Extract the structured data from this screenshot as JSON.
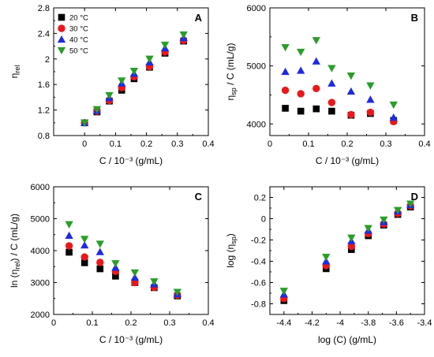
{
  "colors": {
    "20 °C": "#000000",
    "30 °C": "#e8191c",
    "40 °C": "#1f2be0",
    "50 °C": "#2a9d2a"
  },
  "markers": {
    "20 °C": "square",
    "30 °C": "circle",
    "40 °C": "triangle-up",
    "50 °C": "triangle-down"
  },
  "chart_data": [
    {
      "panel": "A",
      "type": "scatter",
      "xlabel": "C / 10⁻³ (g/mL)",
      "ylabel": "ηrel",
      "xlim": [
        -0.1,
        0.4
      ],
      "ylim": [
        0.8,
        2.8
      ],
      "xticks": [
        "0",
        "0.1",
        "0.2",
        "0.3",
        "0.4"
      ],
      "xtick_values": [
        0,
        0.1,
        0.2,
        0.3,
        0.4
      ],
      "yticks": [
        "0.8",
        "1.2",
        "1.6",
        "2",
        "2.4",
        "2.8"
      ],
      "ytick_values": [
        0.8,
        1.2,
        1.6,
        2.0,
        2.4,
        2.8
      ],
      "legend": [
        "20 °C",
        "30 °C",
        "40 °C",
        "50 °C"
      ],
      "legend_position": "top-left",
      "x": [
        0,
        0.04,
        0.08,
        0.12,
        0.16,
        0.21,
        0.26,
        0.32
      ],
      "series": [
        {
          "name": "20 °C",
          "values": [
            1.0,
            1.17,
            1.34,
            1.51,
            1.69,
            1.87,
            2.09,
            2.28
          ]
        },
        {
          "name": "30 °C",
          "values": [
            1.0,
            1.18,
            1.35,
            1.55,
            1.72,
            1.88,
            2.11,
            2.29
          ]
        },
        {
          "name": "40 °C",
          "values": [
            1.0,
            1.19,
            1.39,
            1.62,
            1.77,
            1.95,
            2.17,
            2.33
          ]
        },
        {
          "name": "50 °C",
          "values": [
            1.0,
            1.21,
            1.43,
            1.66,
            1.81,
            2.0,
            2.22,
            2.38
          ]
        }
      ]
    },
    {
      "panel": "B",
      "type": "scatter",
      "xlabel": "C / 10⁻³ (g/mL)",
      "ylabel": "ηsp / C (mL/g)",
      "xlim": [
        0,
        0.4
      ],
      "ylim": [
        3800,
        6000
      ],
      "xticks": [
        "0",
        "0.1",
        "0.2",
        "0.3",
        "0.4"
      ],
      "xtick_values": [
        0,
        0.1,
        0.2,
        0.3,
        0.4
      ],
      "yticks": [
        "4000",
        "5000",
        "6000"
      ],
      "ytick_values": [
        4000,
        5000,
        6000
      ],
      "x": [
        0.04,
        0.08,
        0.12,
        0.16,
        0.21,
        0.26,
        0.32
      ],
      "series": [
        {
          "name": "20 °C",
          "values": [
            4270,
            4220,
            4260,
            4220,
            4150,
            4180,
            4060
          ]
        },
        {
          "name": "30 °C",
          "values": [
            4580,
            4520,
            4610,
            4370,
            4160,
            4200,
            4040
          ]
        },
        {
          "name": "40 °C",
          "values": [
            4900,
            4920,
            5080,
            4700,
            4560,
            4420,
            4110
          ]
        },
        {
          "name": "50 °C",
          "values": [
            5320,
            5240,
            5440,
            4960,
            4830,
            4660,
            4330
          ]
        }
      ]
    },
    {
      "panel": "C",
      "type": "scatter",
      "xlabel": "C / 10⁻³ (g/mL)",
      "ylabel": "ln (ηrel) / C (mL/g)",
      "xlim": [
        0,
        0.4
      ],
      "ylim": [
        2000,
        6000
      ],
      "xticks": [
        "0",
        "0.1",
        "0.2",
        "0.3",
        "0.4"
      ],
      "xtick_values": [
        0,
        0.1,
        0.2,
        0.3,
        0.4
      ],
      "yticks": [
        "2000",
        "3000",
        "4000",
        "5000",
        "6000"
      ],
      "ytick_values": [
        2000,
        3000,
        4000,
        5000,
        6000
      ],
      "x": [
        0.04,
        0.08,
        0.12,
        0.16,
        0.21,
        0.26,
        0.32
      ],
      "series": [
        {
          "name": "20 °C",
          "values": [
            3950,
            3620,
            3430,
            3200,
            3000,
            2840,
            2580
          ]
        },
        {
          "name": "30 °C",
          "values": [
            4150,
            3800,
            3630,
            3350,
            3000,
            2850,
            2600
          ]
        },
        {
          "name": "40 °C",
          "values": [
            4470,
            4170,
            3960,
            3470,
            3160,
            2950,
            2640
          ]
        },
        {
          "name": "50 °C",
          "values": [
            4820,
            4360,
            4210,
            3600,
            3310,
            3030,
            2700
          ]
        }
      ]
    },
    {
      "panel": "D",
      "type": "scatter",
      "xlabel": "log (C) (g/mL)",
      "ylabel": "log (ηsp)",
      "xlim": [
        -4.5,
        -3.4
      ],
      "ylim": [
        -0.9,
        0.3
      ],
      "xticks": [
        "-4.4",
        "-4.2",
        "-4",
        "-3.8",
        "-3.6",
        "-3.4"
      ],
      "xtick_values": [
        -4.4,
        -4.2,
        -4.0,
        -3.8,
        -3.6,
        -3.4
      ],
      "yticks": [
        "-0.8",
        "-0.6",
        "-0.4",
        "-0.2",
        "0",
        "0.2"
      ],
      "ytick_values": [
        -0.8,
        -0.6,
        -0.4,
        -0.2,
        0,
        0.2
      ],
      "x": [
        -4.4,
        -4.1,
        -3.92,
        -3.8,
        -3.69,
        -3.59,
        -3.5
      ],
      "series": [
        {
          "name": "20 °C",
          "values": [
            -0.77,
            -0.47,
            -0.29,
            -0.16,
            -0.06,
            0.04,
            0.11
          ]
        },
        {
          "name": "30 °C",
          "values": [
            -0.75,
            -0.44,
            -0.26,
            -0.14,
            -0.05,
            0.05,
            0.12
          ]
        },
        {
          "name": "40 °C",
          "values": [
            -0.71,
            -0.4,
            -0.21,
            -0.11,
            -0.03,
            0.07,
            0.13
          ]
        },
        {
          "name": "50 °C",
          "values": [
            -0.68,
            -0.36,
            -0.18,
            -0.09,
            -0.01,
            0.08,
            0.14
          ]
        }
      ]
    }
  ]
}
